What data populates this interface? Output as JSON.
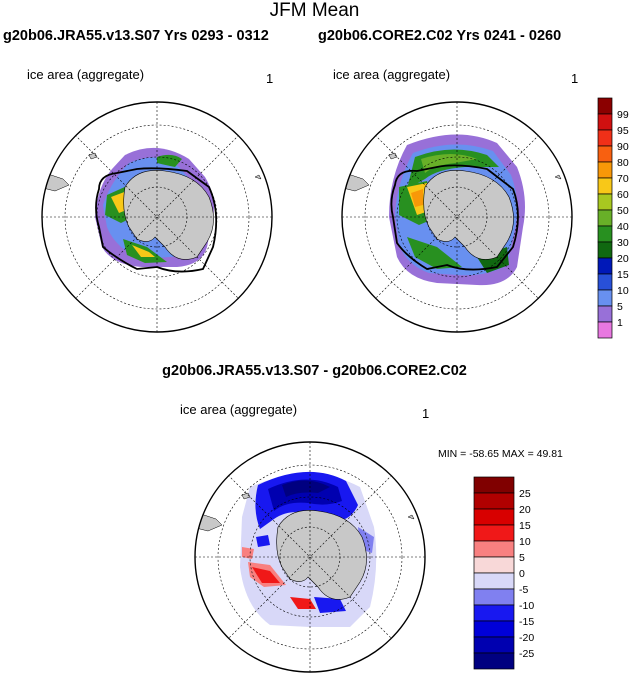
{
  "main_title": "JFM Mean",
  "panels": [
    {
      "title": "g20b06.JRA55.v13.S07  Yrs 0293 - 0312",
      "label": "ice area  (aggregate)",
      "number": "1"
    },
    {
      "title": "g20b06.CORE2.C02  Yrs 0241 - 0260",
      "label": "ice area  (aggregate)",
      "number": "1"
    }
  ],
  "diff_panel": {
    "title": "g20b06.JRA55.v13.S07 - g20b06.CORE2.C02",
    "label": "ice area  (aggregate)",
    "number": "1",
    "minmax": "MIN = -58.65 MAX =  49.81"
  },
  "colorbar_top": {
    "labels": [
      "99",
      "95",
      "90",
      "80",
      "70",
      "60",
      "50",
      "40",
      "30",
      "20",
      "15",
      "10",
      "5",
      "1"
    ],
    "colors": [
      "#8b0000",
      "#d01010",
      "#f03018",
      "#f86010",
      "#f89808",
      "#f8c818",
      "#a8c820",
      "#68b028",
      "#289020",
      "#106810",
      "#0018b8",
      "#2850d8",
      "#6890f0",
      "#9870d8",
      "#e878e0"
    ]
  },
  "colorbar_diff": {
    "labels": [
      "25",
      "20",
      "15",
      "10",
      "5",
      "0",
      "-5",
      "-10",
      "-15",
      "-20",
      "-25"
    ],
    "colors": [
      "#800000",
      "#b00000",
      "#d80000",
      "#f01818",
      "#f88080",
      "#f8d8d8",
      "#d8d8f8",
      "#8080f0",
      "#1818f0",
      "#0000d8",
      "#0000b0",
      "#000080"
    ]
  }
}
